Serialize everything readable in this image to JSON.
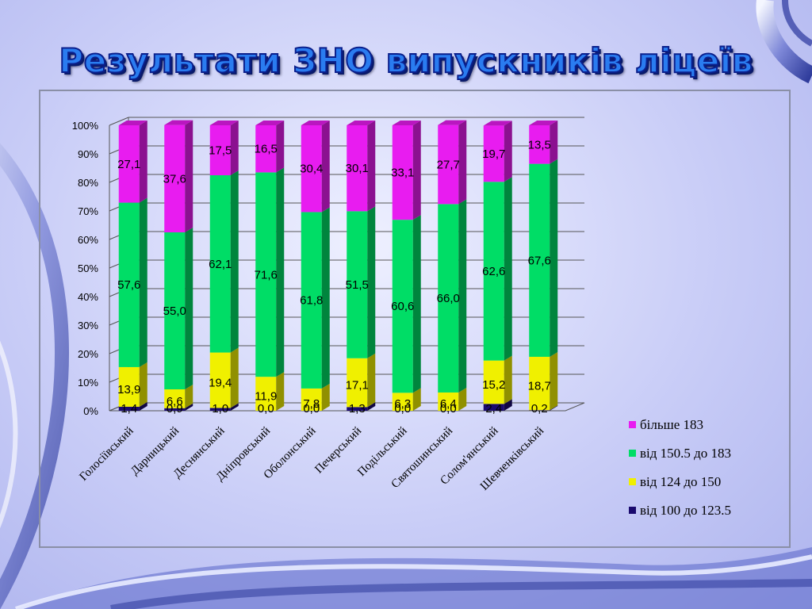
{
  "title": "Результати ЗНО випускників ліцеїв",
  "colors": {
    "above_183": "#e81cf0",
    "from_150_5_to_183": "#00dd66",
    "from_124_to_150": "#f0f000",
    "from_100_to_123_5": "#1a0a6e"
  },
  "chart_data": {
    "type": "bar",
    "stacked": true,
    "percent_stacked": true,
    "categories": [
      "Голосіївський",
      "Дарницький",
      "Деснянський",
      "Дніпровський",
      "Оболонський",
      "Печерський",
      "Подільський",
      "Святошинський",
      "Солом'янський",
      "Шевченківський"
    ],
    "series": [
      {
        "name": "від 100 до 123.5",
        "color": "#1a0a6e",
        "values": [
          1.4,
          0.9,
          1.0,
          0.0,
          0.0,
          1.3,
          0.0,
          0.0,
          2.4,
          0.2
        ],
        "labels": [
          "1,4",
          "0,9",
          "1,0",
          "0,0",
          "0,0",
          "1,3",
          "0,0",
          "0,0",
          "2,4",
          "0,2"
        ]
      },
      {
        "name": "від 124 до 150",
        "color": "#f0f000",
        "values": [
          13.9,
          6.6,
          19.4,
          11.9,
          7.8,
          17.1,
          6.3,
          6.4,
          15.2,
          18.7
        ],
        "labels": [
          "13,9",
          "6,6",
          "19,4",
          "11,9",
          "7,8",
          "17,1",
          "6,3",
          "6,4",
          "15,2",
          "18,7"
        ]
      },
      {
        "name": "від 150.5 до 183",
        "color": "#00dd66",
        "values": [
          57.6,
          55.0,
          62.1,
          71.6,
          61.8,
          51.5,
          60.6,
          66.0,
          62.6,
          67.6
        ],
        "labels": [
          "57,6",
          "55,0",
          "62,1",
          "71,6",
          "61,8",
          "51,5",
          "60,6",
          "66,0",
          "62,6",
          "67,6"
        ]
      },
      {
        "name": "більше 183",
        "color": "#e81cf0",
        "values": [
          27.1,
          37.6,
          17.5,
          16.5,
          30.4,
          30.1,
          33.1,
          27.7,
          19.7,
          13.5
        ],
        "labels": [
          "27,1",
          "37,6",
          "17,5",
          "16,5",
          "30,4",
          "30,1",
          "33,1",
          "27,7",
          "19,7",
          "13,5"
        ]
      }
    ],
    "y_ticks": [
      "0%",
      "10%",
      "20%",
      "30%",
      "40%",
      "50%",
      "60%",
      "70%",
      "80%",
      "90%",
      "100%"
    ],
    "ylim": [
      0,
      100
    ],
    "grid": true,
    "legend_position": "bottom-right",
    "legend_order": [
      "більше 183",
      "від 150.5 до 183",
      "від 124 до 150",
      "від 100 до 123.5"
    ]
  }
}
